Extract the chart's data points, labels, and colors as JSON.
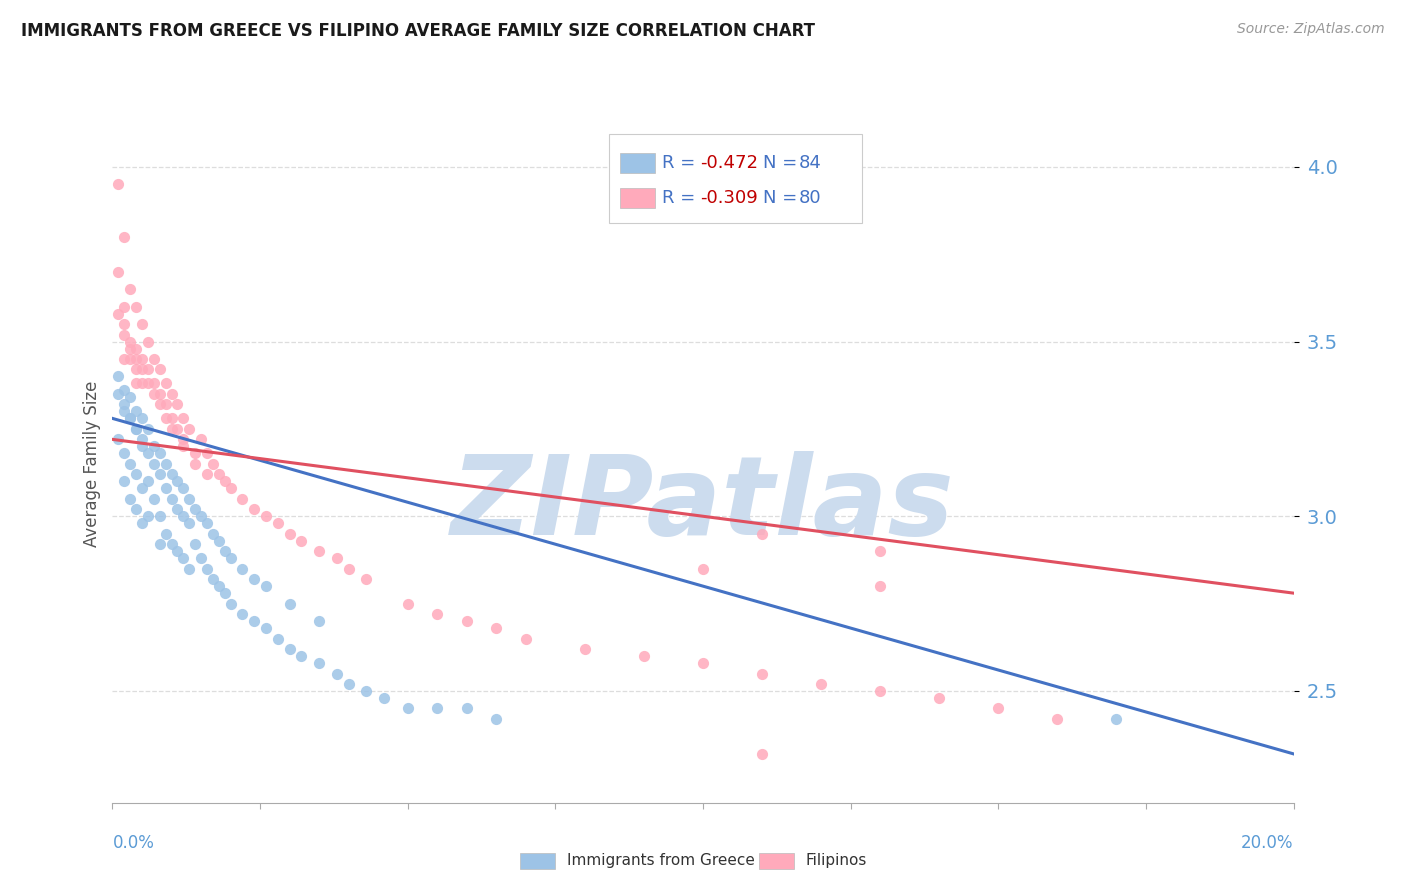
{
  "title": "IMMIGRANTS FROM GREECE VS FILIPINO AVERAGE FAMILY SIZE CORRELATION CHART",
  "source": "Source: ZipAtlas.com",
  "ylabel": "Average Family Size",
  "xlim": [
    0.0,
    0.2
  ],
  "ylim": [
    2.18,
    4.12
  ],
  "yticks": [
    2.5,
    3.0,
    3.5,
    4.0
  ],
  "title_color": "#1a1a1a",
  "axis_color": "#5b9bd5",
  "watermark": "ZIPatlas",
  "watermark_color": "#ccdcee",
  "series1_color": "#9dc3e6",
  "series2_color": "#ffaabb",
  "trend1_color": "#4472c4",
  "trend2_color": "#e05060",
  "series1_name": "Immigrants from Greece",
  "series2_name": "Filipinos",
  "legend_r_color": "#c00000",
  "legend_n_color": "#4472c4",
  "legend_text_color": "#4472c4",
  "legend_r1_val": "-0.472",
  "legend_n1_val": "84",
  "legend_r2_val": "-0.309",
  "legend_n2_val": "80",
  "grid_color": "#dddddd",
  "background_color": "#ffffff",
  "trend1_x": [
    0.0,
    0.2
  ],
  "trend1_y": [
    3.28,
    2.32
  ],
  "trend2_x": [
    0.0,
    0.2
  ],
  "trend2_y": [
    3.22,
    2.78
  ],
  "s1_x": [
    0.001,
    0.002,
    0.002,
    0.002,
    0.003,
    0.003,
    0.003,
    0.004,
    0.004,
    0.004,
    0.005,
    0.005,
    0.005,
    0.006,
    0.006,
    0.006,
    0.007,
    0.007,
    0.008,
    0.008,
    0.008,
    0.009,
    0.009,
    0.01,
    0.01,
    0.011,
    0.011,
    0.012,
    0.012,
    0.013,
    0.013,
    0.014,
    0.015,
    0.016,
    0.017,
    0.018,
    0.019,
    0.02,
    0.022,
    0.024,
    0.026,
    0.028,
    0.03,
    0.032,
    0.035,
    0.038,
    0.04,
    0.043,
    0.046,
    0.05,
    0.055,
    0.06,
    0.065,
    0.17,
    0.001,
    0.001,
    0.002,
    0.002,
    0.003,
    0.003,
    0.004,
    0.004,
    0.005,
    0.005,
    0.006,
    0.007,
    0.008,
    0.009,
    0.01,
    0.011,
    0.012,
    0.013,
    0.014,
    0.015,
    0.016,
    0.017,
    0.018,
    0.019,
    0.02,
    0.022,
    0.024,
    0.026,
    0.03,
    0.035
  ],
  "s1_y": [
    3.22,
    3.3,
    3.18,
    3.1,
    3.28,
    3.15,
    3.05,
    3.25,
    3.12,
    3.02,
    3.2,
    3.08,
    2.98,
    3.18,
    3.1,
    3.0,
    3.15,
    3.05,
    3.12,
    3.0,
    2.92,
    3.08,
    2.95,
    3.05,
    2.92,
    3.02,
    2.9,
    3.0,
    2.88,
    2.98,
    2.85,
    2.92,
    2.88,
    2.85,
    2.82,
    2.8,
    2.78,
    2.75,
    2.72,
    2.7,
    2.68,
    2.65,
    2.62,
    2.6,
    2.58,
    2.55,
    2.52,
    2.5,
    2.48,
    2.45,
    2.45,
    2.45,
    2.42,
    2.42,
    3.4,
    3.35,
    3.36,
    3.32,
    3.34,
    3.28,
    3.3,
    3.25,
    3.28,
    3.22,
    3.25,
    3.2,
    3.18,
    3.15,
    3.12,
    3.1,
    3.08,
    3.05,
    3.02,
    3.0,
    2.98,
    2.95,
    2.93,
    2.9,
    2.88,
    2.85,
    2.82,
    2.8,
    2.75,
    2.7
  ],
  "s2_x": [
    0.001,
    0.001,
    0.002,
    0.002,
    0.002,
    0.003,
    0.003,
    0.003,
    0.004,
    0.004,
    0.004,
    0.005,
    0.005,
    0.005,
    0.006,
    0.006,
    0.007,
    0.007,
    0.008,
    0.008,
    0.009,
    0.009,
    0.01,
    0.01,
    0.011,
    0.011,
    0.012,
    0.012,
    0.013,
    0.014,
    0.015,
    0.016,
    0.017,
    0.018,
    0.019,
    0.02,
    0.022,
    0.024,
    0.026,
    0.028,
    0.03,
    0.032,
    0.035,
    0.038,
    0.04,
    0.043,
    0.05,
    0.055,
    0.06,
    0.065,
    0.07,
    0.08,
    0.09,
    0.1,
    0.11,
    0.12,
    0.13,
    0.14,
    0.15,
    0.16,
    0.1,
    0.11,
    0.13,
    0.13,
    0.11,
    0.001,
    0.002,
    0.002,
    0.003,
    0.004,
    0.004,
    0.005,
    0.006,
    0.007,
    0.008,
    0.009,
    0.01,
    0.012,
    0.014,
    0.016
  ],
  "s2_y": [
    3.95,
    3.7,
    3.8,
    3.6,
    3.55,
    3.65,
    3.5,
    3.45,
    3.6,
    3.48,
    3.42,
    3.55,
    3.45,
    3.38,
    3.5,
    3.42,
    3.45,
    3.38,
    3.42,
    3.35,
    3.38,
    3.32,
    3.35,
    3.28,
    3.32,
    3.25,
    3.28,
    3.22,
    3.25,
    3.18,
    3.22,
    3.18,
    3.15,
    3.12,
    3.1,
    3.08,
    3.05,
    3.02,
    3.0,
    2.98,
    2.95,
    2.93,
    2.9,
    2.88,
    2.85,
    2.82,
    2.75,
    2.72,
    2.7,
    2.68,
    2.65,
    2.62,
    2.6,
    2.58,
    2.55,
    2.52,
    2.5,
    2.48,
    2.45,
    2.42,
    2.85,
    2.95,
    2.9,
    2.8,
    2.32,
    3.58,
    3.52,
    3.45,
    3.48,
    3.45,
    3.38,
    3.42,
    3.38,
    3.35,
    3.32,
    3.28,
    3.25,
    3.2,
    3.15,
    3.12
  ]
}
